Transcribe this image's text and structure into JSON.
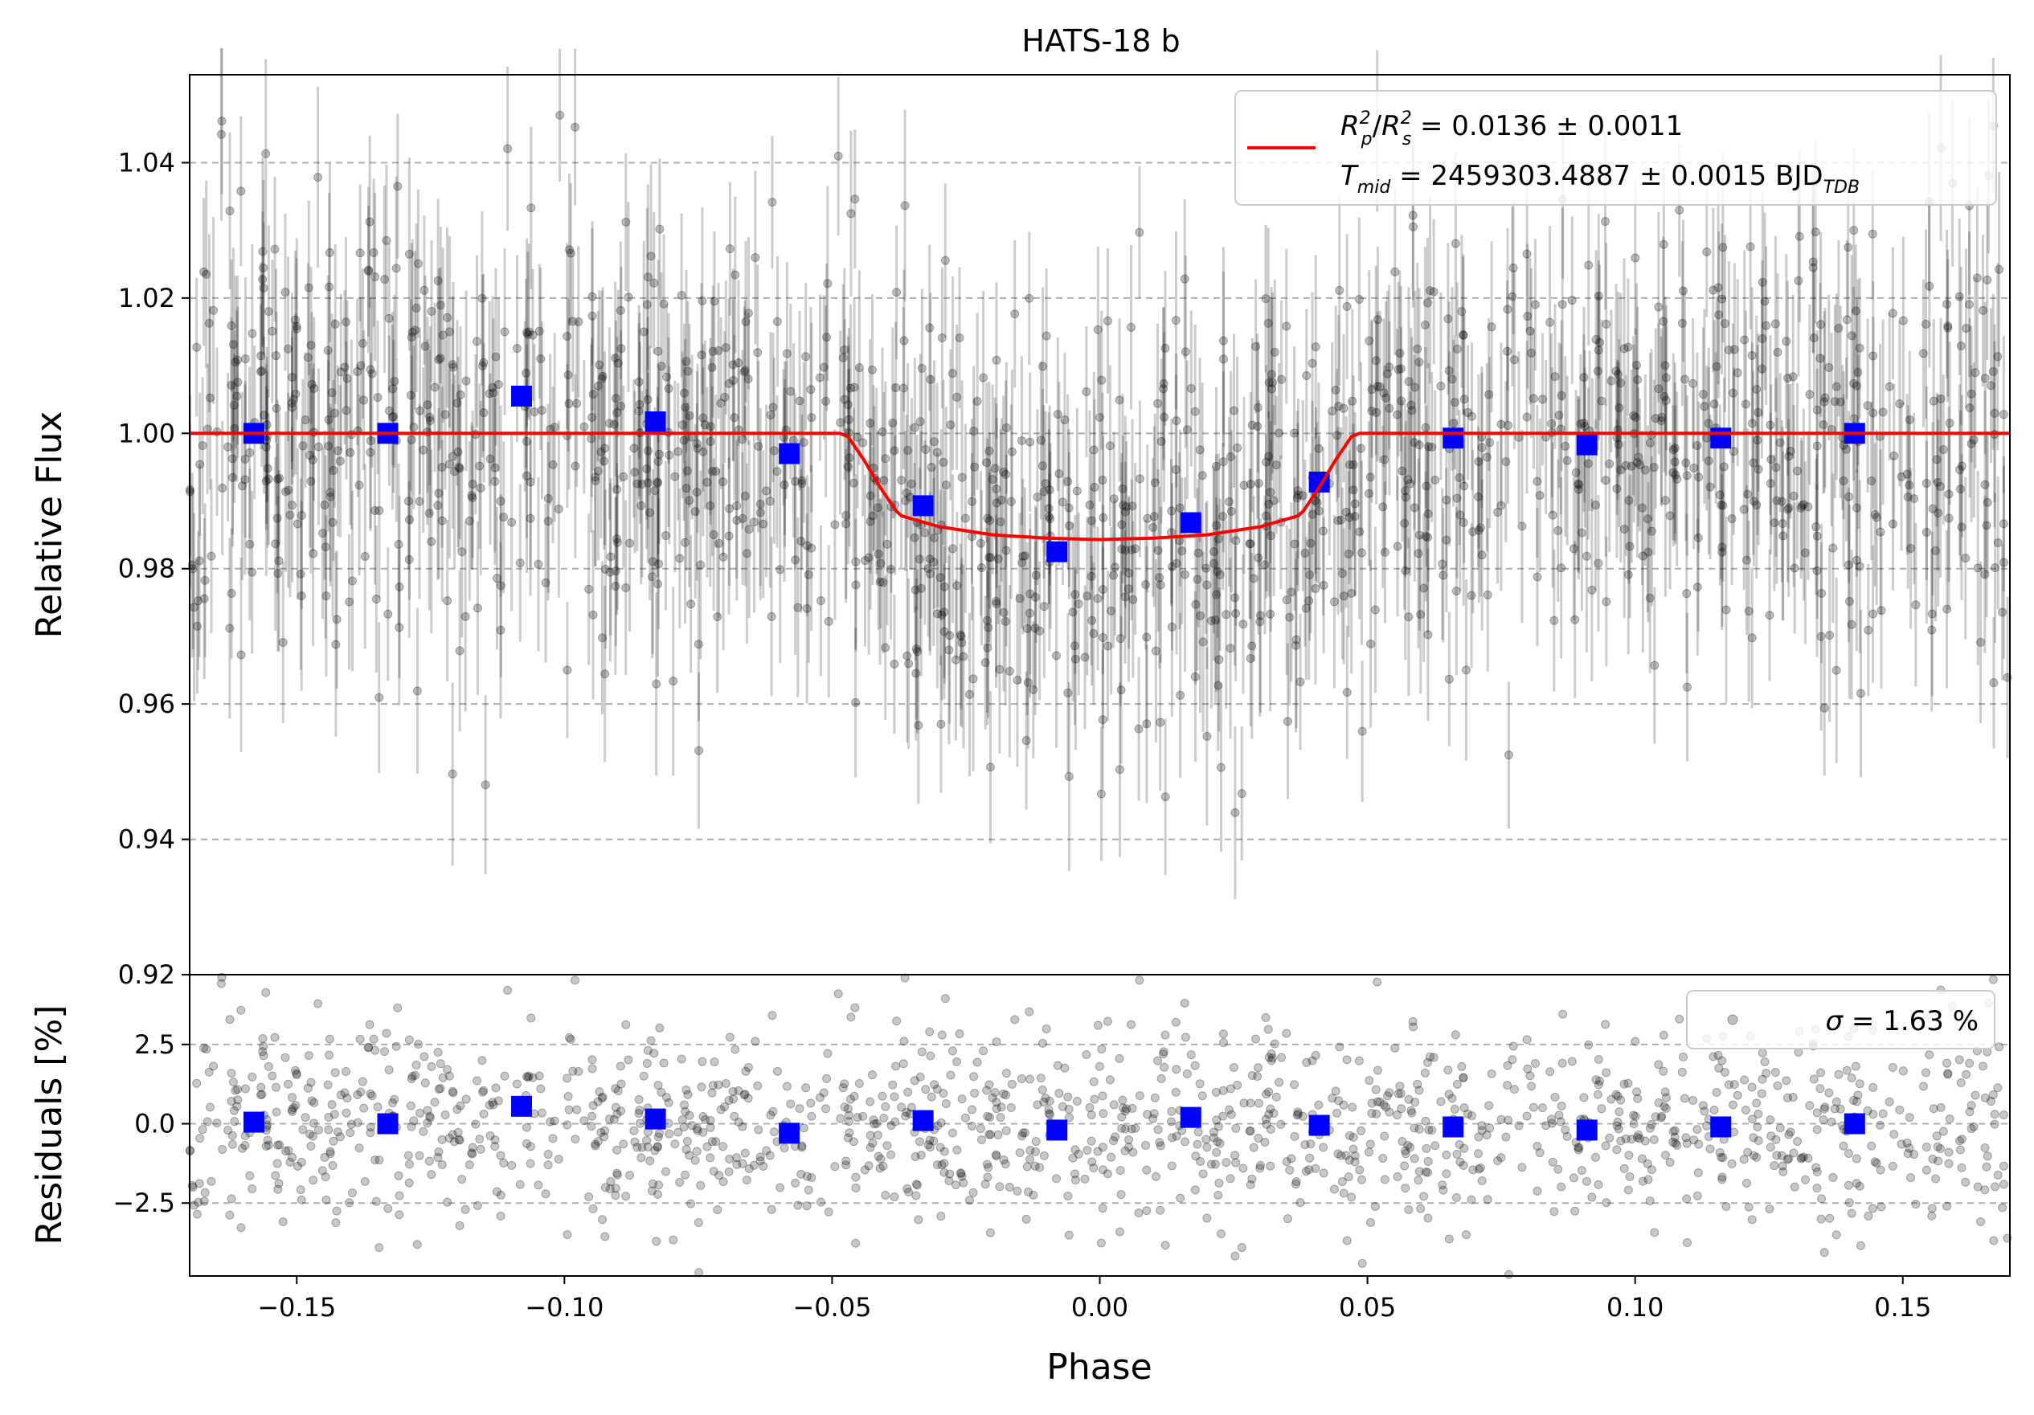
{
  "chart_data": [
    {
      "panel": "top",
      "type": "scatter",
      "title": "HATS-18 b",
      "xlabel": "",
      "ylabel": "Relative Flux",
      "xlim": [
        -0.17,
        0.17
      ],
      "ylim": [
        0.92,
        1.053
      ],
      "yticks": [
        0.92,
        0.94,
        0.96,
        0.98,
        1.0,
        1.02,
        1.04
      ],
      "ytick_labels": [
        "0.92",
        "0.94",
        "0.96",
        "0.98",
        "1.00",
        "1.02",
        "1.04"
      ],
      "grid": "y-dashed",
      "colors": {
        "data": "#000000",
        "errorbar": "#bbbbbb",
        "binned": "#0000ff",
        "model": "#ff0000"
      },
      "binned": {
        "x": [
          -0.158,
          -0.133,
          -0.108,
          -0.083,
          -0.058,
          -0.033,
          -0.008,
          0.017,
          0.041,
          0.066,
          0.091,
          0.116,
          0.141
        ],
        "y": [
          1.0,
          1.0,
          1.0055,
          1.0017,
          0.997,
          0.9893,
          0.9825,
          0.9868,
          0.9928,
          0.9993,
          0.9983,
          0.9993,
          1.0
        ]
      },
      "model": {
        "name": "",
        "x": [
          -0.17,
          -0.0485,
          -0.047,
          -0.044,
          -0.041,
          -0.038,
          -0.037,
          -0.03,
          -0.02,
          -0.01,
          0.0,
          0.01,
          0.02,
          0.03,
          0.037,
          0.038,
          0.041,
          0.044,
          0.047,
          0.0485,
          0.17
        ],
        "y": [
          1.0,
          1.0,
          0.9995,
          0.996,
          0.992,
          0.9885,
          0.9878,
          0.9862,
          0.985,
          0.9845,
          0.9843,
          0.9845,
          0.985,
          0.9862,
          0.9878,
          0.9885,
          0.992,
          0.996,
          0.9995,
          1.0,
          1.0
        ]
      },
      "raw_points": {
        "count_shown": "approx 1400",
        "scatter_sigma": 0.0163,
        "errorbar_halfwidth": 0.012
      },
      "legend": {
        "placement": "top-right",
        "line1_sym_a": "R",
        "line1_sub_a": "p",
        "line1_sup_a": "2",
        "line1_sep": "/",
        "line1_sym_b": "R",
        "line1_sub_b": "s",
        "line1_sup_b": "2",
        "line1_value": " = 0.0136 ± 0.0011",
        "line2_sym": "T",
        "line2_sub": "mid",
        "line2_value": " = 2459303.4887 ± 0.0015 BJD",
        "line2_unit_sub": "TDB"
      }
    },
    {
      "panel": "bottom",
      "type": "scatter",
      "xlabel": "Phase",
      "ylabel": "Residuals [%]",
      "xlim": [
        -0.17,
        0.17
      ],
      "ylim": [
        -4.8,
        4.7
      ],
      "xticks": [
        -0.15,
        -0.1,
        -0.05,
        0.0,
        0.05,
        0.1,
        0.15
      ],
      "xtick_labels": [
        "−0.15",
        "−0.10",
        "−0.05",
        "0.00",
        "0.05",
        "0.10",
        "0.15"
      ],
      "yticks": [
        -2.5,
        0.0,
        2.5
      ],
      "ytick_labels": [
        "−2.5",
        "0.0",
        "2.5"
      ],
      "grid": "y-dashed",
      "binned": {
        "x": [
          -0.158,
          -0.133,
          -0.108,
          -0.083,
          -0.058,
          -0.033,
          -0.008,
          0.017,
          0.041,
          0.066,
          0.091,
          0.116,
          0.141
        ],
        "y": [
          0.05,
          0.0,
          0.55,
          0.15,
          -0.3,
          0.1,
          -0.2,
          0.2,
          -0.05,
          -0.1,
          -0.2,
          -0.1,
          0.0
        ]
      },
      "legend": {
        "placement": "top-right",
        "label_sym": "σ",
        "label_value": " = 1.63 %"
      }
    }
  ]
}
